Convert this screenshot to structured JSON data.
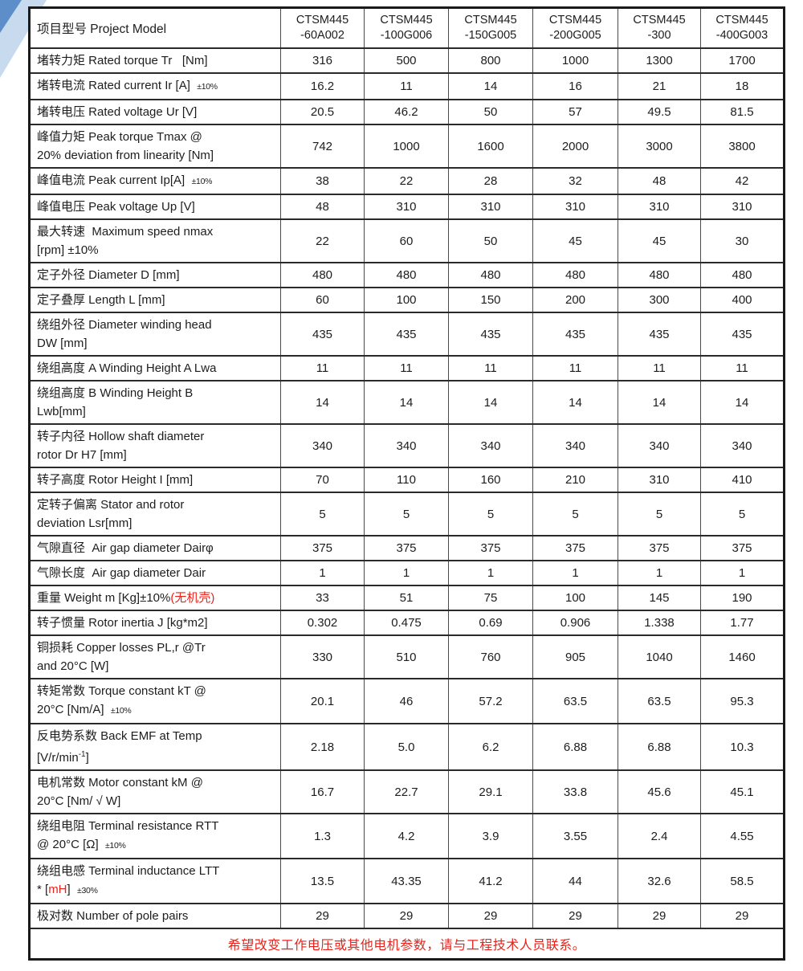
{
  "page": {
    "corner_decoration": {
      "light_blue": "#c7daee",
      "dark_blue": "#5e8ec9"
    }
  },
  "colors": {
    "red_text": "#e8231c",
    "text": "#1d1d1f",
    "grid_line": "#3a3a3a"
  },
  "table": {
    "header": {
      "label": "项目型号 Project Model",
      "models": [
        {
          "line1": "CTSM445",
          "line2": "-60A002"
        },
        {
          "line1": "CTSM445",
          "line2": "-100G006"
        },
        {
          "line1": "CTSM445",
          "line2": "-150G005"
        },
        {
          "line1": "CTSM445",
          "line2": "-200G005"
        },
        {
          "line1": "CTSM445",
          "line2": "-300"
        },
        {
          "line1": "CTSM445",
          "line2": "-400G003"
        }
      ]
    },
    "rows": [
      {
        "label": [
          {
            "t": "堵转力矩 Rated torque Tr   [Nm]"
          }
        ],
        "values": [
          "316",
          "500",
          "800",
          "1000",
          "1300",
          "1700"
        ]
      },
      {
        "label": [
          {
            "t": "堵转电流 Rated current Ir [A]  "
          },
          {
            "t": "±10%",
            "s": "small"
          }
        ],
        "values": [
          "16.2",
          "11",
          "14",
          "16",
          "21",
          "18"
        ]
      },
      {
        "label": [
          {
            "t": "堵转电压 Rated voltage Ur [V]"
          }
        ],
        "values": [
          "20.5",
          "46.2",
          "50",
          "57",
          "49.5",
          "81.5"
        ]
      },
      {
        "label": [
          {
            "t": "峰值力矩 Peak torque Tmax @\n20% deviation from linearity [Nm]"
          }
        ],
        "values": [
          "742",
          "1000",
          "1600",
          "2000",
          "3000",
          "3800"
        ]
      },
      {
        "label": [
          {
            "t": "峰值电流 Peak current Ip[A]  "
          },
          {
            "t": "±10%",
            "s": "small"
          }
        ],
        "values": [
          "38",
          "22",
          "28",
          "32",
          "48",
          "42"
        ]
      },
      {
        "label": [
          {
            "t": "峰值电压 Peak voltage Up [V]"
          }
        ],
        "values": [
          "48",
          "310",
          "310",
          "310",
          "310",
          "310"
        ]
      },
      {
        "label": [
          {
            "t": "最大转速  Maximum speed nmax\n[rpm] ±10%"
          }
        ],
        "values": [
          "22",
          "60",
          "50",
          "45",
          "45",
          "30"
        ]
      },
      {
        "label": [
          {
            "t": "定子外径 Diameter D [mm]"
          }
        ],
        "values": [
          "480",
          "480",
          "480",
          "480",
          "480",
          "480"
        ]
      },
      {
        "label": [
          {
            "t": "定子叠厚 Length L [mm]"
          }
        ],
        "values": [
          "60",
          "100",
          "150",
          "200",
          "300",
          "400"
        ]
      },
      {
        "label": [
          {
            "t": "绕组外径 Diameter winding head\nDW [mm]"
          }
        ],
        "values": [
          "435",
          "435",
          "435",
          "435",
          "435",
          "435"
        ]
      },
      {
        "label": [
          {
            "t": "绕组高度 A Winding Height A Lwa"
          }
        ],
        "values": [
          "11",
          "11",
          "11",
          "11",
          "11",
          "11"
        ]
      },
      {
        "label": [
          {
            "t": "绕组高度 B Winding Height B\nLwb[mm]"
          }
        ],
        "values": [
          "14",
          "14",
          "14",
          "14",
          "14",
          "14"
        ]
      },
      {
        "label": [
          {
            "t": "转子内径 Hollow shaft diameter\nrotor Dr H7 [mm]"
          }
        ],
        "values": [
          "340",
          "340",
          "340",
          "340",
          "340",
          "340"
        ]
      },
      {
        "label": [
          {
            "t": "转子高度 Rotor Height I [mm]"
          }
        ],
        "values": [
          "70",
          "110",
          "160",
          "210",
          "310",
          "410"
        ]
      },
      {
        "label": [
          {
            "t": "定转子偏离 Stator and rotor\ndeviation Lsr[mm]"
          }
        ],
        "values": [
          "5",
          "5",
          "5",
          "5",
          "5",
          "5"
        ]
      },
      {
        "label": [
          {
            "t": "气隙直径  Air gap diameter Dairφ"
          }
        ],
        "values": [
          "375",
          "375",
          "375",
          "375",
          "375",
          "375"
        ]
      },
      {
        "label": [
          {
            "t": "气隙长度  Air gap diameter Dair"
          }
        ],
        "values": [
          "1",
          "1",
          "1",
          "1",
          "1",
          "1"
        ]
      },
      {
        "label": [
          {
            "t": "重量 Weight m [Kg]±10%"
          },
          {
            "t": "(无机壳)",
            "s": "red"
          }
        ],
        "values": [
          "33",
          "51",
          "75",
          "100",
          "145",
          "190"
        ]
      },
      {
        "label": [
          {
            "t": "转子惯量 Rotor inertia J [kg*m2]"
          }
        ],
        "values": [
          "0.302",
          "0.475",
          "0.69",
          "0.906",
          "1.338",
          "1.77"
        ]
      },
      {
        "label": [
          {
            "t": "铜损耗 Copper losses PL,r @Tr\nand 20°C [W]"
          }
        ],
        "values": [
          "330",
          "510",
          "760",
          "905",
          "1040",
          "1460"
        ]
      },
      {
        "label": [
          {
            "t": "转矩常数 Torque constant kT @\n20°C [Nm/A]  "
          },
          {
            "t": "±10%",
            "s": "small"
          }
        ],
        "values": [
          "20.1",
          "46",
          "57.2",
          "63.5",
          "63.5",
          "95.3"
        ]
      },
      {
        "label": [
          {
            "t": "反电势系数 Back EMF at Temp\n[V/r/min"
          },
          {
            "t": "-1",
            "s": "sup"
          },
          {
            "t": "]"
          }
        ],
        "values": [
          "2.18",
          "5.0",
          "6.2",
          "6.88",
          "6.88",
          "10.3"
        ]
      },
      {
        "label": [
          {
            "t": "电机常数 Motor constant kM @\n20°C [Nm/ √ W]"
          }
        ],
        "values": [
          "16.7",
          "22.7",
          "29.1",
          "33.8",
          "45.6",
          "45.1"
        ]
      },
      {
        "label": [
          {
            "t": "绕组电阻 Terminal resistance RTT\n@ 20°C [Ω]  "
          },
          {
            "t": "±10%",
            "s": "small"
          }
        ],
        "values": [
          "1.3",
          "4.2",
          "3.9",
          "3.55",
          "2.4",
          "4.55"
        ]
      },
      {
        "label": [
          {
            "t": "绕组电感 Terminal inductance LTT\n* ["
          },
          {
            "t": "mH",
            "s": "red"
          },
          {
            "t": "]  "
          },
          {
            "t": "±30%",
            "s": "small"
          }
        ],
        "values": [
          "13.5",
          "43.35",
          "41.2",
          "44",
          "32.6",
          "58.5"
        ]
      },
      {
        "label": [
          {
            "t": "极对数 Number of pole pairs"
          }
        ],
        "values": [
          "29",
          "29",
          "29",
          "29",
          "29",
          "29"
        ]
      }
    ],
    "footer": "希望改变工作电压或其他电机参数，请与工程技术人员联系。"
  }
}
